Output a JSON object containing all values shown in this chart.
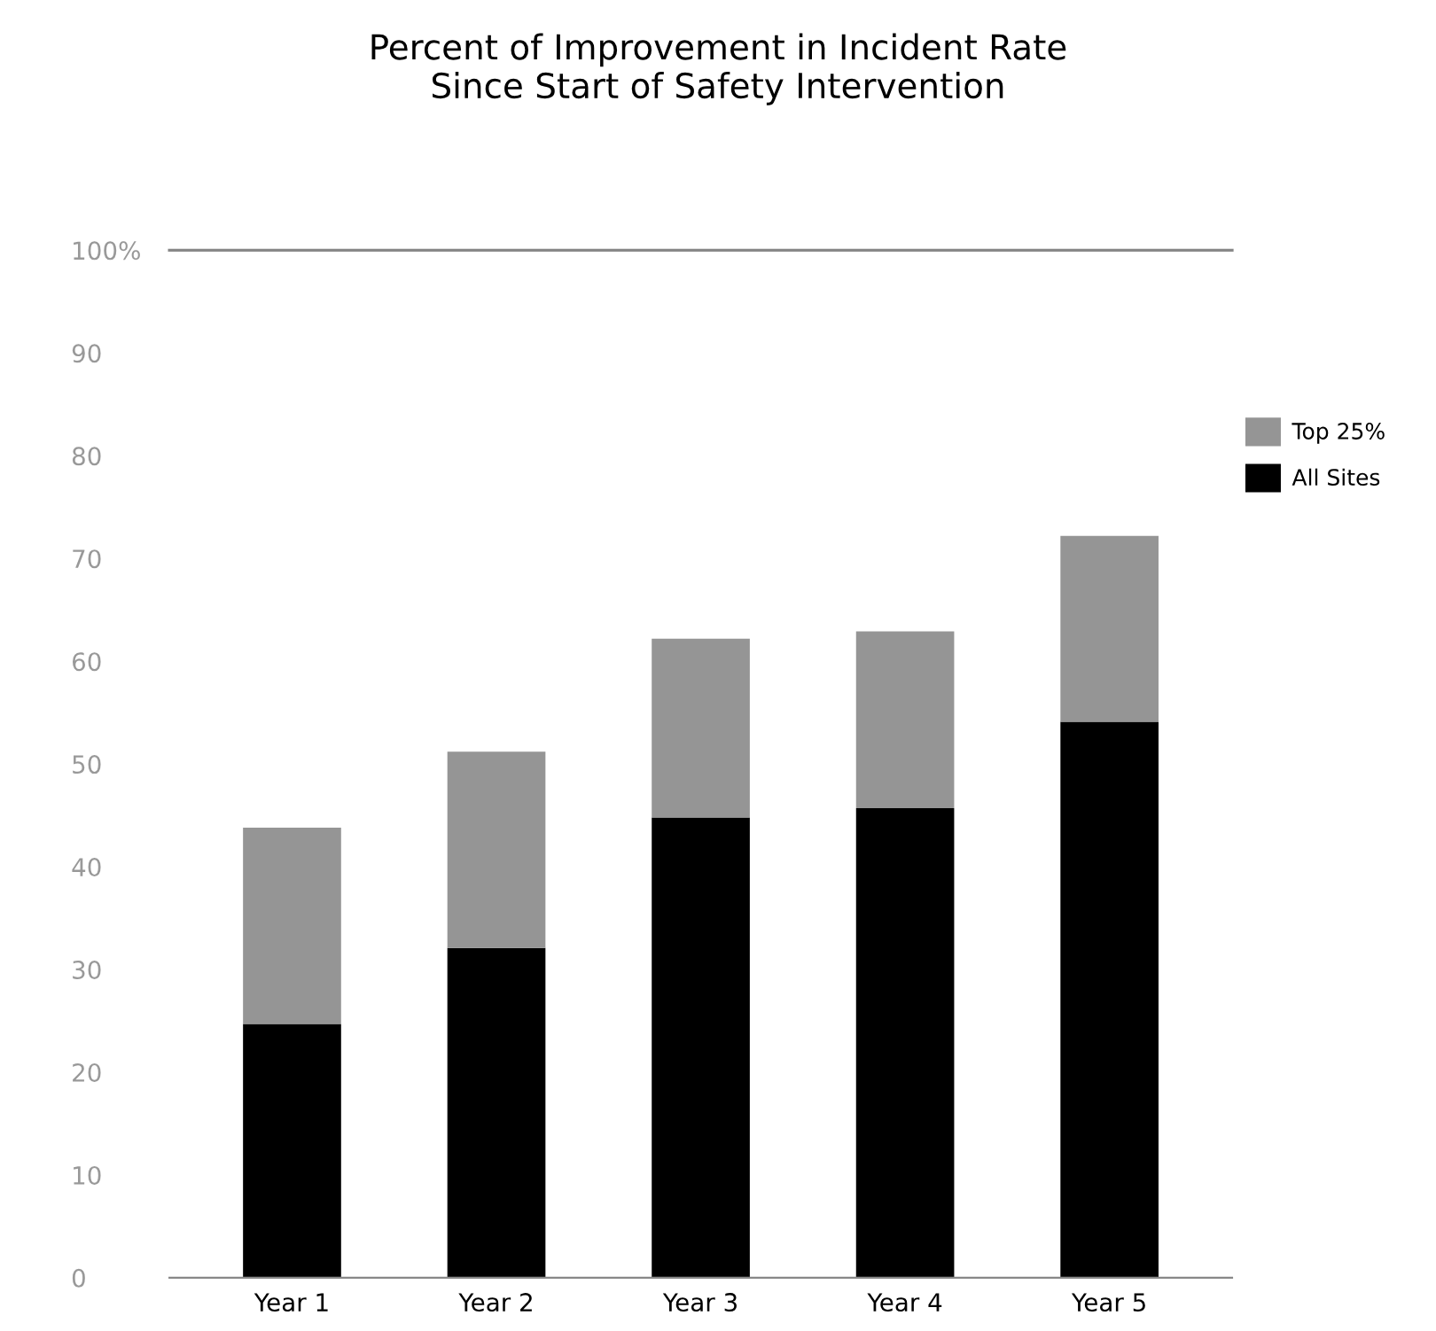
{
  "chart_data": {
    "type": "bar",
    "title": "Percent of Improvement in Incident Rate\nSince Start of Safety Intervention",
    "categories": [
      "Year 1",
      "Year 2",
      "Year 3",
      "Year 4",
      "Year 5"
    ],
    "stacked": true,
    "series": [
      {
        "name": "All Sites",
        "color": "#000000",
        "values": [
          24.7,
          32.1,
          44.8,
          45.7,
          54.1
        ]
      },
      {
        "name": "Top 25%",
        "color": "#959595",
        "values": [
          19.1,
          19.1,
          17.4,
          17.2,
          18.1
        ]
      }
    ],
    "ylim": [
      0,
      100
    ],
    "yticks": [
      0,
      10,
      20,
      30,
      40,
      50,
      60,
      70,
      80,
      90,
      {
        "value": 100,
        "label": "100%"
      }
    ],
    "ref_lines": [
      {
        "axis": "y",
        "value": 100,
        "label": null,
        "color": "#888888"
      }
    ],
    "grid": false,
    "legend": "right"
  }
}
